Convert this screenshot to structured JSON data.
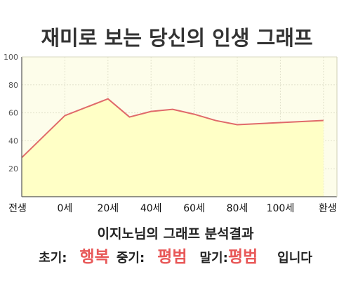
{
  "chart_data": {
    "type": "area",
    "title": "재미로 보는 당신의 인생 그래프",
    "x_labels": [
      "전생",
      "0세",
      "20세",
      "40세",
      "60세",
      "80세",
      "100세",
      "환생"
    ],
    "ylim": [
      0,
      100
    ],
    "y_ticks": [
      20,
      40,
      60,
      80,
      100
    ],
    "grid": true,
    "points": [
      {
        "x": 0,
        "y": 28
      },
      {
        "x": 1,
        "y": 58
      },
      {
        "x": 2,
        "y": 70
      },
      {
        "x": 2.5,
        "y": 57
      },
      {
        "x": 3,
        "y": 61
      },
      {
        "x": 3.5,
        "y": 62.5
      },
      {
        "x": 4,
        "y": 59
      },
      {
        "x": 4.5,
        "y": 54.5
      },
      {
        "x": 5,
        "y": 51.5
      },
      {
        "x": 6,
        "y": 53
      },
      {
        "x": 7,
        "y": 54.5
      }
    ],
    "line_color": "#e06a6a",
    "fill_color": "#ffffc6",
    "plot_background": "#fdfdea"
  },
  "result": {
    "title": "이지노님의 그래프 분석결과",
    "early_label": "초기:",
    "early_value": "행복",
    "mid_label": "중기:",
    "mid_value": "평범",
    "late_label": "말기:",
    "late_value": "평범",
    "suffix": "입니다"
  },
  "colors": {
    "accent": "#e85858",
    "title": "#333333"
  }
}
